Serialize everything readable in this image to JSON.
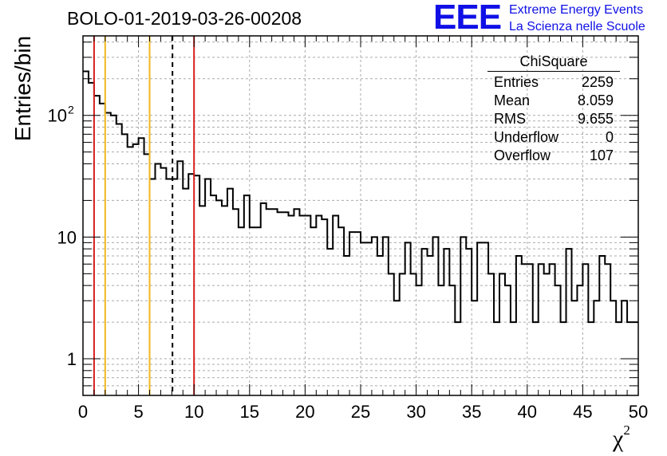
{
  "title": "BOLO-01-2019-03-26-00208",
  "logo": {
    "mark": "EEE",
    "line1": "Extreme Energy Events",
    "line2": "La Scienza nelle Scuole"
  },
  "stats_box": {
    "title": "ChiSquare",
    "rows": [
      {
        "label": "Entries",
        "value": "2259"
      },
      {
        "label": "Mean",
        "value": "8.059"
      },
      {
        "label": "RMS",
        "value": "9.655"
      },
      {
        "label": "Underflow",
        "value": "0"
      },
      {
        "label": "Overflow",
        "value": "107"
      }
    ]
  },
  "chart_data": {
    "type": "histogram",
    "title": "BOLO-01-2019-03-26-00208",
    "xlabel": "χ",
    "xlabel_sup": "2",
    "ylabel": "Entries/bin",
    "xlim": [
      0,
      50
    ],
    "ylim": [
      0.5,
      450
    ],
    "y_scale": "log",
    "grid": true,
    "bin_width": 0.5,
    "x_ticks": [
      "0",
      "5",
      "10",
      "15",
      "20",
      "25",
      "30",
      "35",
      "40",
      "45",
      "50"
    ],
    "y_ticks": [
      {
        "value": 1,
        "label": "1"
      },
      {
        "value": 10,
        "label": "10"
      },
      {
        "value": 100,
        "label": "10",
        "sup": "2"
      }
    ],
    "counts": [
      230,
      185,
      145,
      125,
      105,
      100,
      85,
      70,
      55,
      58,
      65,
      48,
      30,
      40,
      37,
      30,
      30,
      42,
      25,
      33,
      32,
      18,
      30,
      22,
      20,
      18,
      25,
      17,
      12,
      22,
      12,
      12,
      19,
      17,
      17,
      16,
      16,
      15,
      17,
      15,
      15,
      12,
      15,
      14,
      8,
      15,
      12,
      7,
      11,
      11,
      9,
      9,
      10,
      7,
      10,
      5,
      3,
      5,
      9,
      5,
      4,
      8,
      7,
      10,
      4,
      8,
      4,
      2,
      10,
      8,
      3,
      9,
      9,
      5,
      2,
      5,
      4,
      2,
      7,
      6,
      6,
      2,
      6,
      5,
      6,
      4,
      2,
      8,
      3,
      4,
      6,
      2,
      3,
      7,
      6,
      3,
      2,
      3,
      2,
      2
    ],
    "vertical_lines": [
      {
        "x": 1,
        "color": "#d91e1e",
        "style": "solid"
      },
      {
        "x": 2,
        "color": "#f0b81e",
        "style": "solid"
      },
      {
        "x": 6,
        "color": "#f0b81e",
        "style": "solid"
      },
      {
        "x": 8.059,
        "color": "#000000",
        "style": "dashed"
      },
      {
        "x": 10,
        "color": "#d91e1e",
        "style": "solid"
      }
    ]
  }
}
